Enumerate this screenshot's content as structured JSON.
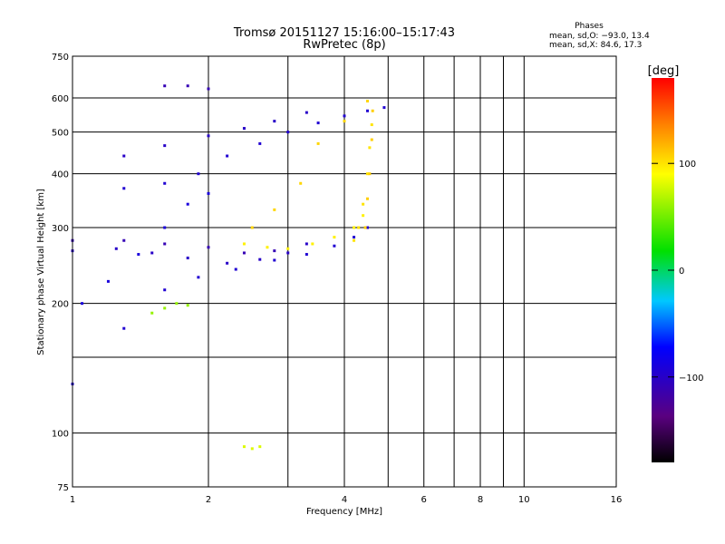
{
  "chart_data": {
    "type": "scatter",
    "title": "Tromsø 20151127 15:16:00–15:17:43",
    "subtitle": "RwPretec (8p)",
    "xlabel": "Frequency [MHz]",
    "ylabel": "Stationary phase Virtual Height [km]",
    "x_scale": "log",
    "y_scale": "log",
    "xlim": [
      1,
      16
    ],
    "ylim": [
      75,
      750
    ],
    "x_ticks": [
      1,
      2,
      4,
      6,
      8,
      10,
      16
    ],
    "x_tick_labels": [
      "1",
      "2",
      "4",
      "6",
      "8",
      "10",
      "16"
    ],
    "x_grid_extra": [
      3,
      5,
      7,
      9
    ],
    "y_ticks": [
      75,
      100,
      200,
      300,
      400,
      500,
      600,
      750
    ],
    "y_tick_labels": [
      "75",
      "100",
      "200",
      "300",
      "400",
      "500",
      "600",
      "750"
    ],
    "y_grid_extra": [
      150
    ],
    "grid": true,
    "stats": {
      "heading": "Phases",
      "line_o": "mean, sd,O: −93.0, 13.4",
      "line_x": "mean, sd,X: 84.6, 17.3"
    },
    "colorbar": {
      "label": "[deg]",
      "range": [
        -180,
        180
      ],
      "ticks": [
        -100,
        0,
        100
      ],
      "tick_labels": [
        "−100",
        "0",
        "100"
      ],
      "colormap": "rainbow (black→purple→blue→cyan→green→yellow→red)"
    },
    "traces": [
      {
        "x": [
          1.0,
          1.3,
          1.6,
          1.9,
          2.3,
          2.8,
          3.3,
          3.8,
          4.2,
          4.5
        ],
        "y": [
          130,
          175,
          215,
          230,
          240,
          252,
          260,
          272,
          285,
          300
        ],
        "phase": -95
      },
      {
        "x": [
          1.0,
          1.25,
          1.5,
          1.8,
          2.2,
          2.6,
          3.0,
          3.3
        ],
        "y": [
          265,
          268,
          262,
          255,
          248,
          253,
          262,
          275
        ],
        "phase": -100
      },
      {
        "x": [
          1.0,
          1.3,
          1.6,
          2.0,
          2.4,
          2.8
        ],
        "y": [
          280,
          280,
          275,
          270,
          262,
          265
        ],
        "phase": -110
      },
      {
        "x": [
          1.3,
          1.6,
          1.9,
          2.2,
          2.6,
          3.0,
          3.5,
          4.0,
          4.5,
          4.9
        ],
        "y": [
          370,
          380,
          400,
          440,
          470,
          500,
          525,
          545,
          560,
          570
        ],
        "phase": -95
      },
      {
        "x": [
          1.3,
          1.6,
          2.0,
          2.4,
          2.8,
          3.3
        ],
        "y": [
          440,
          465,
          490,
          510,
          530,
          555
        ],
        "phase": -100
      },
      {
        "x": [
          1.6,
          1.8,
          2.0
        ],
        "y": [
          640,
          640,
          630
        ],
        "phase": -110
      },
      {
        "x": [
          1.05,
          1.2,
          1.4,
          1.6,
          1.8,
          2.0
        ],
        "y": [
          200,
          225,
          260,
          300,
          340,
          360
        ],
        "phase": -90
      },
      {
        "x": [
          2.4,
          2.7,
          3.0,
          3.4,
          3.8,
          4.2,
          4.4
        ],
        "y": [
          275,
          270,
          268,
          275,
          285,
          300,
          320
        ],
        "phase": 95
      },
      {
        "x": [
          4.2,
          4.3,
          4.4,
          4.5,
          4.55,
          4.6
        ],
        "y": [
          280,
          300,
          340,
          400,
          460,
          520
        ],
        "phase": 100
      },
      {
        "x": [
          4.45,
          4.5,
          4.55,
          4.6,
          4.62
        ],
        "y": [
          300,
          350,
          400,
          480,
          560
        ],
        "phase": 108
      },
      {
        "x": [
          2.5,
          2.8,
          3.2,
          3.5,
          4.0,
          4.5
        ],
        "y": [
          300,
          330,
          380,
          470,
          530,
          590
        ],
        "phase": 105
      },
      {
        "x": [
          1.5,
          1.6,
          1.7,
          1.8
        ],
        "y": [
          190,
          195,
          200,
          198
        ],
        "phase": 60
      },
      {
        "x": [
          2.4,
          2.5,
          2.6
        ],
        "y": [
          93,
          92,
          93
        ],
        "phase": 80
      }
    ]
  }
}
